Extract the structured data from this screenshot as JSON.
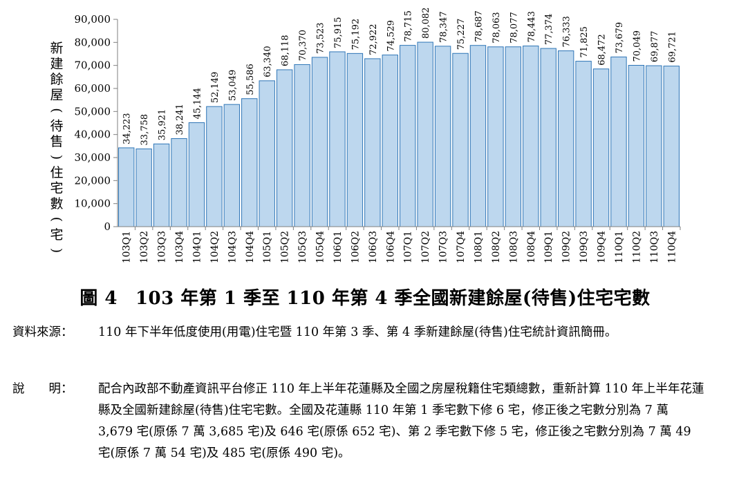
{
  "chart_data": {
    "type": "bar",
    "title": "",
    "xlabel": "",
    "ylabel": "新建餘屋(待售)住宅數(宅)",
    "ylim": [
      0,
      90000
    ],
    "yticks": [
      "0",
      "10,000",
      "20,000",
      "30,000",
      "40,000",
      "50,000",
      "60,000",
      "70,000",
      "80,000",
      "90,000"
    ],
    "bar_color": "#bdd7ee",
    "bar_edge_color": "#2e75b6",
    "categories": [
      "103Q1",
      "103Q2",
      "103Q3",
      "103Q4",
      "104Q1",
      "104Q2",
      "104Q3",
      "104Q4",
      "105Q1",
      "105Q2",
      "105Q3",
      "105Q4",
      "106Q1",
      "106Q2",
      "106Q3",
      "106Q4",
      "107Q1",
      "107Q2",
      "107Q3",
      "107Q4",
      "108Q1",
      "108Q2",
      "108Q3",
      "108Q4",
      "109Q1",
      "109Q2",
      "109Q3",
      "109Q4",
      "110Q1",
      "110Q2",
      "110Q3",
      "110Q4"
    ],
    "values": [
      34223,
      33758,
      35921,
      38241,
      45144,
      52149,
      53049,
      55586,
      63340,
      68118,
      70370,
      73523,
      75915,
      75192,
      72922,
      74529,
      78715,
      80082,
      78347,
      75227,
      78687,
      78063,
      78077,
      78443,
      77374,
      76333,
      71825,
      68472,
      73679,
      70049,
      69877,
      69721
    ],
    "data_labels": [
      "34,223",
      "33,758",
      "35,921",
      "38,241",
      "45,144",
      "52,149",
      "53,049",
      "55,586",
      "63,340",
      "68,118",
      "70,370",
      "73,523",
      "75,915",
      "75,192",
      "72,922",
      "74,529",
      "78,715",
      "80,082",
      "78,347",
      "75,227",
      "78,687",
      "78,063",
      "78,077",
      "78,443",
      "77,374",
      "76,333",
      "71,825",
      "68,472",
      "73,679",
      "70,049",
      "69,877",
      "69,721"
    ]
  },
  "caption": {
    "figure": "圖 4",
    "title": "103 年第 1 季至 110 年第 4 季全國新建餘屋(待售)住宅宅數"
  },
  "source": {
    "label": "資料來源：",
    "text": "110 年下半年低度使用(用電)住宅暨 110 年第 3 季、第 4 季新建餘屋(待售)住宅統計資訊簡冊。"
  },
  "explanation": {
    "label": "說　　明：",
    "text": "配合內政部不動產資訊平台修正 110 年上半年花蓮縣及全國之房屋稅籍住宅類總數，重新計算 110 年上半年花蓮縣及全國新建餘屋(待售)住宅宅數。全國及花蓮縣 110 年第 1 季宅數下修 6 宅，修正後之宅數分別為 7 萬 3,679 宅(原係 7 萬 3,685 宅)及 646 宅(原係 652 宅)、第 2 季宅數下修 5 宅，修正後之宅數分別為 7 萬 49 宅(原係 7 萬 54 宅)及 485 宅(原係 490 宅)。"
  }
}
